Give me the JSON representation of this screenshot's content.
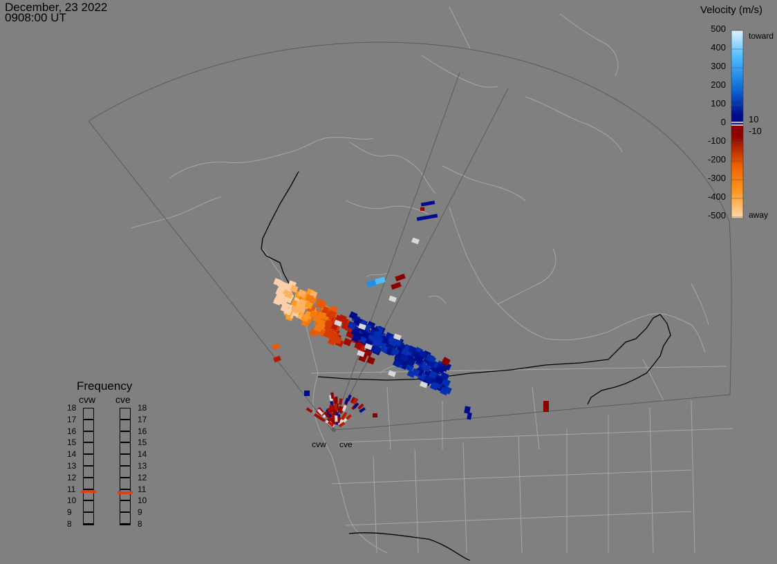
{
  "header": {
    "date": "December, 23 2022",
    "time": "0908:00 UT"
  },
  "colorbar": {
    "title": "Velocity (m/s)",
    "ticks": [
      "500",
      "400",
      "300",
      "200",
      "100",
      "0",
      "-100",
      "-200",
      "-300",
      "-400",
      "-500"
    ],
    "inner_labels": [
      "10",
      "-10"
    ],
    "toward_label": "toward",
    "away_label": "away",
    "colors": {
      "toward_light": "#dcf2ff",
      "toward_mid": "#1f8ff0",
      "toward_dark": "#000c8c",
      "away_dark": "#8c0000",
      "away_mid": "#ff8800",
      "away_light": "#ffd8b4",
      "ground_scatter": "#d8d8d8"
    }
  },
  "frequency_panel": {
    "title": "Frequency",
    "radars": [
      {
        "name": "cvw",
        "freq_mhz": 10.8
      },
      {
        "name": "cve",
        "freq_mhz": 10.7
      }
    ],
    "scale": [
      "18",
      "17",
      "16",
      "15",
      "14",
      "13",
      "12",
      "11",
      "10",
      "9",
      "8"
    ],
    "marker_color": "#e04010"
  },
  "map": {
    "radar_labels": [
      "cvw",
      "cve"
    ],
    "land_color": "#7f7f7f",
    "coast_color": "#a8a8a8",
    "border_color": "#000000",
    "fov_color": "#5a5a5a"
  }
}
